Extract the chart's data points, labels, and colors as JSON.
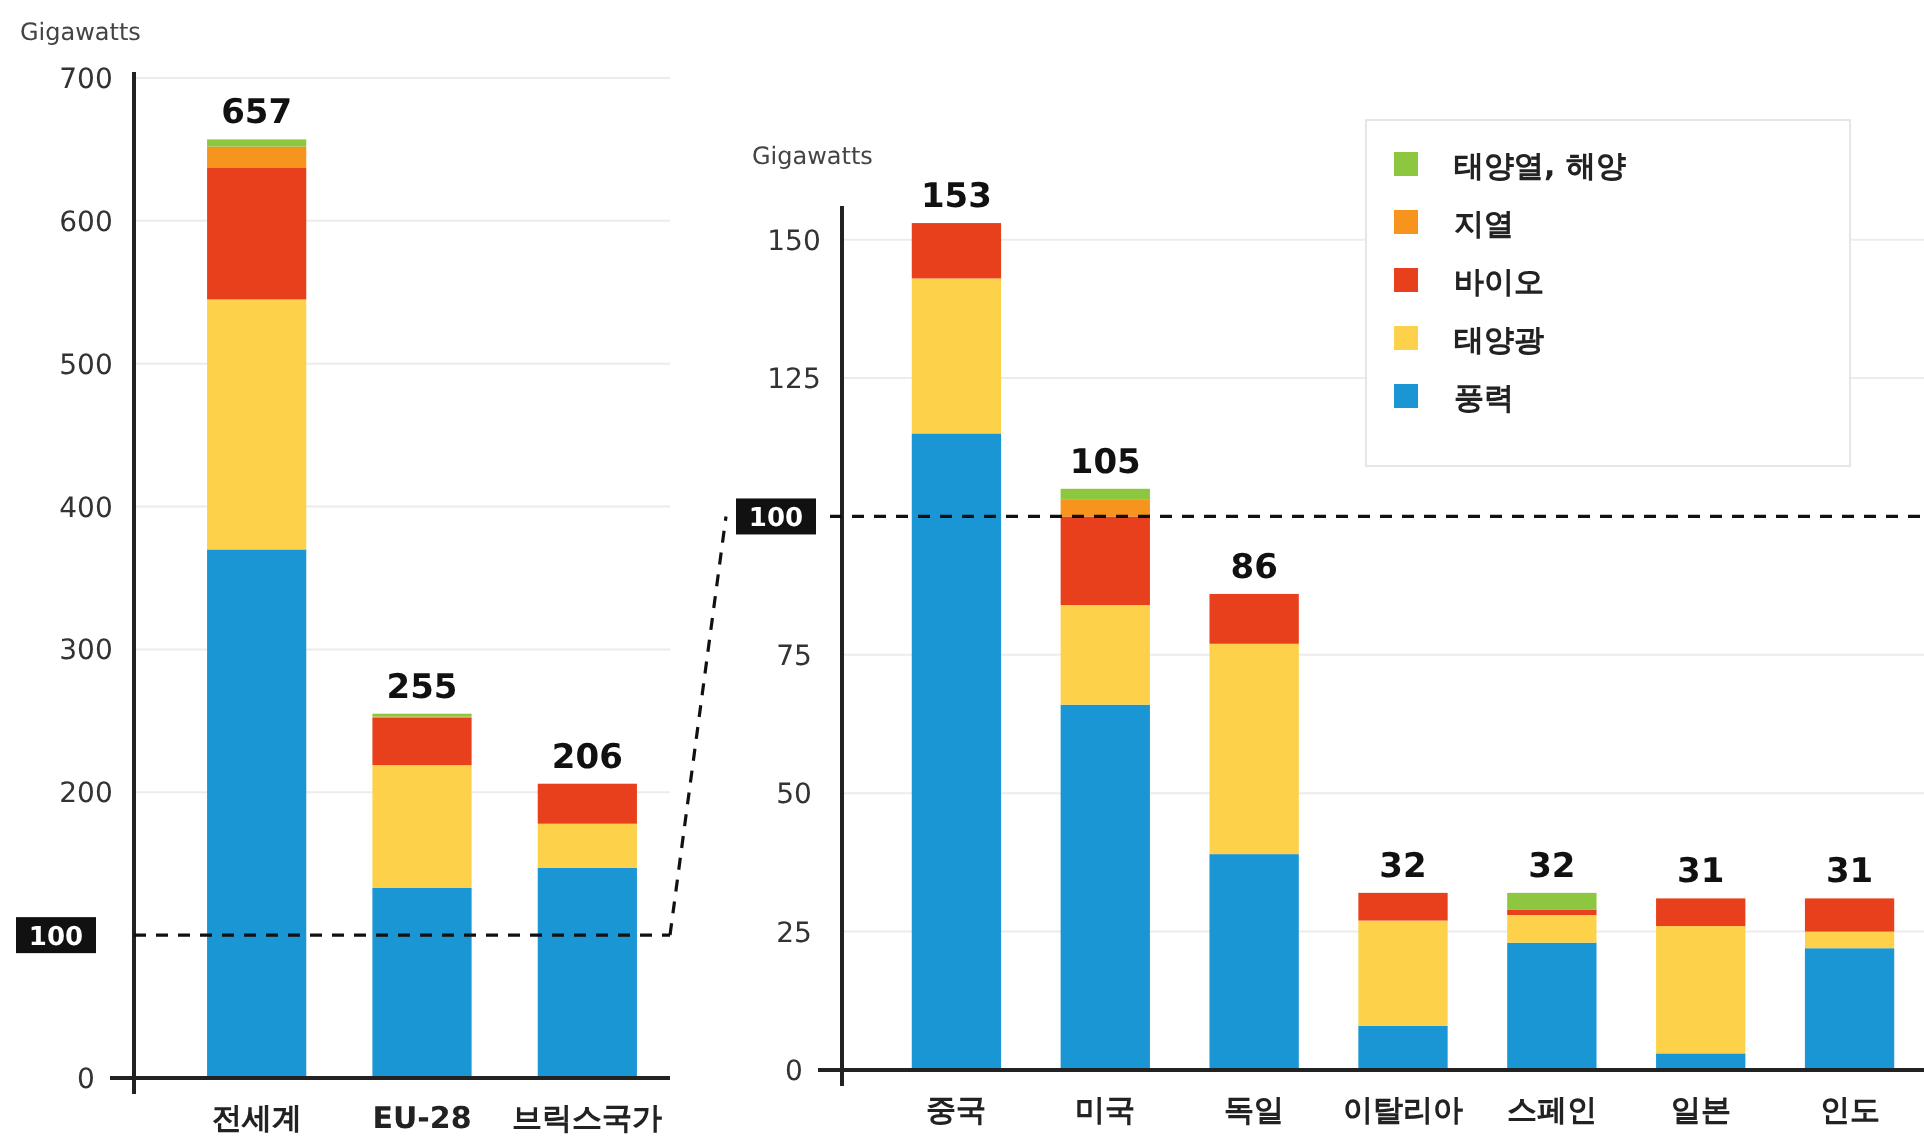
{
  "chart_data": [
    {
      "type": "bar",
      "stacked": true,
      "ylabel": "Gigawatts",
      "categories": [
        "전세계",
        "EU-28",
        "브릭스국가"
      ],
      "series": [
        {
          "color": "#1a96d4",
          "values": [
            370,
            133,
            147
          ]
        },
        {
          "color": "#fdd24a",
          "values": [
            175,
            86,
            31
          ]
        },
        {
          "color": "#e8401c",
          "values": [
            92,
            33,
            28
          ]
        },
        {
          "color": "#f7941d",
          "values": [
            15,
            1,
            0
          ]
        },
        {
          "color": "#8dc63f",
          "values": [
            5,
            2,
            0
          ]
        }
      ],
      "totals": [
        "657",
        "255",
        "206"
      ],
      "ylim": [
        0,
        700
      ],
      "yticks": [
        0,
        200,
        300,
        400,
        500,
        600,
        700
      ],
      "grid": "y",
      "legend": false,
      "ref_lines": [
        {
          "axis": "y",
          "value": 100,
          "label": "100",
          "line_style": "dashed"
        }
      ]
    },
    {
      "type": "bar",
      "stacked": true,
      "ylabel": "Gigawatts",
      "categories": [
        "중국",
        "미국",
        "독일",
        "이탈리아",
        "스페인",
        "일본",
        "인도"
      ],
      "series": [
        {
          "name": "풍력",
          "color": "#1a96d4",
          "values": [
            115,
            66,
            39,
            8,
            23,
            3,
            22
          ]
        },
        {
          "name": "태양광",
          "color": "#fdd24a",
          "values": [
            28,
            18,
            38,
            19,
            5,
            23,
            3
          ]
        },
        {
          "name": "바이오",
          "color": "#e8401c",
          "values": [
            10,
            16,
            9,
            5,
            1,
            5,
            6
          ]
        },
        {
          "name": "지열",
          "color": "#f7941d",
          "values": [
            0,
            3,
            0,
            0,
            0,
            0,
            0
          ]
        },
        {
          "name": "태양열, 해양",
          "color": "#8dc63f",
          "values": [
            0,
            2,
            0,
            0,
            3,
            0,
            0
          ]
        }
      ],
      "totals": [
        "153",
        "105",
        "86",
        "32",
        "32",
        "31",
        "31"
      ],
      "ylim": [
        0,
        155
      ],
      "yticks": [
        0,
        25,
        50,
        75,
        125,
        150
      ],
      "grid": "y",
      "legend": "top right",
      "ref_lines": [
        {
          "axis": "y",
          "value": 100,
          "label": "100",
          "line_style": "dashed"
        }
      ]
    }
  ]
}
